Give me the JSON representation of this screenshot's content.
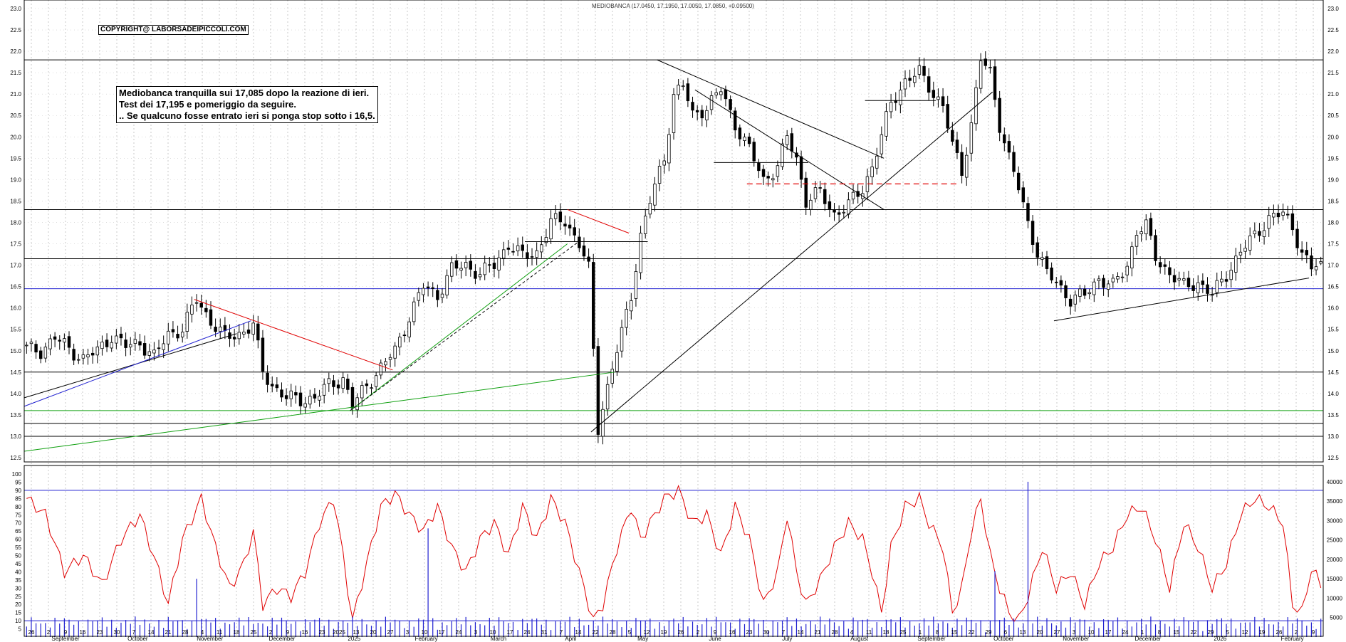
{
  "header": {
    "title": "MEDIOBANCA (17.0450, 17.1950, 17.0050, 17.0850, +0.09500)"
  },
  "annotations": {
    "copyright": "COPYRIGHT@ LABORSADEIPICCOLI.COM",
    "comment_lines": [
      "Mediobanca tranquilla sui 17,085 dopo la reazione di ieri.",
      "Test dei 17,195 e pomeriggio da seguire.",
      ".. Se qualcuno fosse entrato ieri si ponga stop sotto i 16,5."
    ]
  },
  "colors": {
    "candle": "#000000",
    "oscillator": "#e00000",
    "volume": "#2020d0",
    "blue_line": "#2020d0",
    "green_line": "#10a010",
    "red_line": "#e00000",
    "grid": "#c8c8c8"
  },
  "chart_data": [
    {
      "type": "candlestick",
      "title": "MEDIOBANCA (17.0450, 17.1950, 17.0050, 17.0850, +0.09500)",
      "ylim": [
        12.5,
        23.0
      ],
      "y_ticks": [
        "12.5",
        "13.0",
        "13.5",
        "14.0",
        "14.5",
        "15.0",
        "15.5",
        "16.0",
        "16.5",
        "17.0",
        "17.5",
        "18.0",
        "18.5",
        "19.0",
        "19.5",
        "20.0",
        "20.5",
        "21.0",
        "21.5",
        "22.0",
        "22.5",
        "23.0"
      ],
      "last": {
        "open": 17.045,
        "high": 17.195,
        "low": 17.005,
        "close": 17.085,
        "change": 0.095
      },
      "close_path": [
        [
          0,
          15.05
        ],
        [
          3,
          15.0
        ],
        [
          6,
          15.3
        ],
        [
          9,
          15.05
        ],
        [
          12,
          14.8
        ],
        [
          15,
          15.0
        ],
        [
          18,
          15.35
        ],
        [
          21,
          15.1
        ],
        [
          24,
          15.2
        ],
        [
          27,
          14.85
        ],
        [
          30,
          15.4
        ],
        [
          33,
          15.5
        ],
        [
          36,
          16.2
        ],
        [
          39,
          15.7
        ],
        [
          42,
          15.3
        ],
        [
          45,
          15.4
        ],
        [
          48,
          15.6
        ],
        [
          50,
          14.5
        ],
        [
          52,
          14.2
        ],
        [
          55,
          13.9
        ],
        [
          58,
          13.85
        ],
        [
          61,
          13.9
        ],
        [
          64,
          14.2
        ],
        [
          67,
          14.35
        ],
        [
          69,
          13.7
        ],
        [
          72,
          14.2
        ],
        [
          75,
          14.6
        ],
        [
          78,
          15.0
        ],
        [
          81,
          15.8
        ],
        [
          84,
          16.5
        ],
        [
          87,
          16.3
        ],
        [
          90,
          16.9
        ],
        [
          93,
          17.0
        ],
        [
          96,
          16.8
        ],
        [
          99,
          17.0
        ],
        [
          102,
          17.5
        ],
        [
          105,
          17.2
        ],
        [
          108,
          17.3
        ],
        [
          111,
          18.0
        ],
        [
          114,
          18.05
        ],
        [
          117,
          17.5
        ],
        [
          119,
          16.9
        ],
        [
          120,
          15.0
        ],
        [
          121,
          13.2
        ],
        [
          122,
          13.7
        ],
        [
          124,
          14.6
        ],
        [
          126,
          15.4
        ],
        [
          128,
          16.3
        ],
        [
          130,
          17.7
        ],
        [
          132,
          18.5
        ],
        [
          135,
          19.5
        ],
        [
          137,
          21.0
        ],
        [
          139,
          21.2
        ],
        [
          141,
          20.5
        ],
        [
          144,
          20.7
        ],
        [
          147,
          21.1
        ],
        [
          150,
          20.3
        ],
        [
          153,
          19.7
        ],
        [
          156,
          19.0
        ],
        [
          159,
          19.3
        ],
        [
          161,
          20.0
        ],
        [
          163,
          19.5
        ],
        [
          165,
          18.5
        ],
        [
          168,
          18.7
        ],
        [
          171,
          18.2
        ],
        [
          174,
          18.4
        ],
        [
          177,
          18.8
        ],
        [
          179,
          19.3
        ],
        [
          181,
          20.0
        ],
        [
          183,
          20.8
        ],
        [
          186,
          21.3
        ],
        [
          189,
          21.5
        ],
        [
          191,
          21.2
        ],
        [
          194,
          20.7
        ],
        [
          196,
          19.8
        ],
        [
          198,
          19.2
        ],
        [
          200,
          20.3
        ],
        [
          202,
          21.8
        ],
        [
          204,
          21.5
        ],
        [
          206,
          20.3
        ],
        [
          208,
          19.5
        ],
        [
          210,
          18.8
        ],
        [
          212,
          18.0
        ],
        [
          214,
          17.3
        ],
        [
          216,
          16.8
        ],
        [
          218,
          16.6
        ],
        [
          221,
          16.2
        ],
        [
          224,
          16.3
        ],
        [
          227,
          16.7
        ],
        [
          230,
          16.5
        ],
        [
          233,
          17.0
        ],
        [
          235,
          17.8
        ],
        [
          237,
          17.9
        ],
        [
          239,
          17.2
        ],
        [
          242,
          16.8
        ],
        [
          245,
          16.5
        ],
        [
          248,
          16.6
        ],
        [
          251,
          16.3
        ],
        [
          254,
          16.8
        ],
        [
          257,
          17.3
        ],
        [
          260,
          17.7
        ],
        [
          263,
          18.1
        ],
        [
          266,
          18.2
        ],
        [
          268,
          17.9
        ],
        [
          270,
          17.3
        ],
        [
          272,
          16.9
        ],
        [
          274,
          17.085
        ]
      ]
    },
    {
      "type": "line",
      "series": [
        {
          "values_path": [
            [
              0,
              85
            ],
            [
              4,
              75
            ],
            [
              8,
              40
            ],
            [
              12,
              50
            ],
            [
              16,
              32
            ],
            [
              20,
              60
            ],
            [
              24,
              75
            ],
            [
              28,
              40
            ],
            [
              30,
              20
            ],
            [
              33,
              60
            ],
            [
              37,
              85
            ],
            [
              40,
              55
            ],
            [
              43,
              30
            ],
            [
              46,
              45
            ],
            [
              48,
              65
            ],
            [
              50,
              20
            ],
            [
              53,
              30
            ],
            [
              56,
              25
            ],
            [
              59,
              40
            ],
            [
              62,
              70
            ],
            [
              65,
              85
            ],
            [
              67,
              50
            ],
            [
              69,
              10
            ],
            [
              72,
              45
            ],
            [
              75,
              80
            ],
            [
              78,
              88
            ],
            [
              81,
              75
            ],
            [
              84,
              65
            ],
            [
              87,
              80
            ],
            [
              90,
              55
            ],
            [
              93,
              40
            ],
            [
              96,
              60
            ],
            [
              99,
              70
            ],
            [
              102,
              50
            ],
            [
              105,
              80
            ],
            [
              108,
              60
            ],
            [
              111,
              85
            ],
            [
              114,
              70
            ],
            [
              117,
              40
            ],
            [
              120,
              10
            ],
            [
              122,
              20
            ],
            [
              125,
              55
            ],
            [
              128,
              80
            ],
            [
              130,
              60
            ],
            [
              132,
              70
            ],
            [
              135,
              85
            ],
            [
              138,
              90
            ],
            [
              141,
              70
            ],
            [
              144,
              75
            ],
            [
              147,
              50
            ],
            [
              150,
              80
            ],
            [
              153,
              60
            ],
            [
              156,
              20
            ],
            [
              159,
              40
            ],
            [
              161,
              75
            ],
            [
              163,
              40
            ],
            [
              165,
              20
            ],
            [
              168,
              35
            ],
            [
              171,
              55
            ],
            [
              174,
              70
            ],
            [
              177,
              60
            ],
            [
              179,
              40
            ],
            [
              181,
              15
            ],
            [
              183,
              55
            ],
            [
              186,
              80
            ],
            [
              189,
              85
            ],
            [
              191,
              70
            ],
            [
              194,
              55
            ],
            [
              196,
              15
            ],
            [
              198,
              30
            ],
            [
              200,
              65
            ],
            [
              202,
              85
            ],
            [
              204,
              50
            ],
            [
              206,
              30
            ],
            [
              208,
              15
            ],
            [
              210,
              10
            ],
            [
              212,
              25
            ],
            [
              215,
              55
            ],
            [
              218,
              30
            ],
            [
              221,
              40
            ],
            [
              224,
              20
            ],
            [
              227,
              45
            ],
            [
              230,
              55
            ],
            [
              233,
              75
            ],
            [
              236,
              80
            ],
            [
              239,
              60
            ],
            [
              242,
              30
            ],
            [
              245,
              70
            ],
            [
              248,
              55
            ],
            [
              251,
              30
            ],
            [
              254,
              45
            ],
            [
              257,
              75
            ],
            [
              260,
              85
            ],
            [
              263,
              80
            ],
            [
              266,
              70
            ],
            [
              268,
              20
            ],
            [
              270,
              15
            ],
            [
              272,
              42
            ],
            [
              274,
              32
            ]
          ]
        }
      ],
      "ylim": [
        0,
        100
      ],
      "y_ticks": [
        "5",
        "10",
        "15",
        "20",
        "25",
        "30",
        "35",
        "40",
        "45",
        "50",
        "55",
        "60",
        "65",
        "70",
        "75",
        "80",
        "85",
        "90",
        "95",
        "100"
      ],
      "levels": [
        90,
        10
      ]
    },
    {
      "type": "bar",
      "y_ticks": [
        "5000",
        "10000",
        "15000",
        "20000",
        "25000",
        "30000",
        "35000",
        "40000"
      ],
      "ylim": [
        0,
        42000
      ],
      "spikes": [
        [
          36,
          15000
        ],
        [
          85,
          28000
        ],
        [
          205,
          17000
        ],
        [
          212,
          40000
        ]
      ]
    }
  ],
  "x_axis": {
    "tick_labels": [
      "26",
      "2",
      "9",
      "16",
      "23",
      "30",
      "7",
      "14",
      "21",
      "28",
      "4",
      "11",
      "18",
      "25",
      "2",
      "9",
      "16",
      "23",
      "2025",
      "13",
      "20",
      "27",
      "3",
      "10",
      "17",
      "24",
      "3",
      "10",
      "17",
      "24",
      "31",
      "7",
      "14",
      "22",
      "28",
      "5",
      "12",
      "19",
      "26",
      "2",
      "9",
      "16",
      "23",
      "30",
      "7",
      "14",
      "21",
      "28",
      "4",
      "11",
      "18",
      "25",
      "1",
      "8",
      "15",
      "22",
      "29",
      "6",
      "13",
      "20",
      "27",
      "3",
      "10",
      "17",
      "24",
      "1",
      "8",
      "15",
      "22",
      "29",
      "5",
      "12",
      "19",
      "26",
      "2",
      "9"
    ],
    "month_labels": [
      "September",
      "October",
      "November",
      "December",
      "2025",
      "February",
      "March",
      "April",
      "May",
      "June",
      "July",
      "August",
      "September",
      "October",
      "November",
      "December",
      "2026",
      "February"
    ]
  }
}
